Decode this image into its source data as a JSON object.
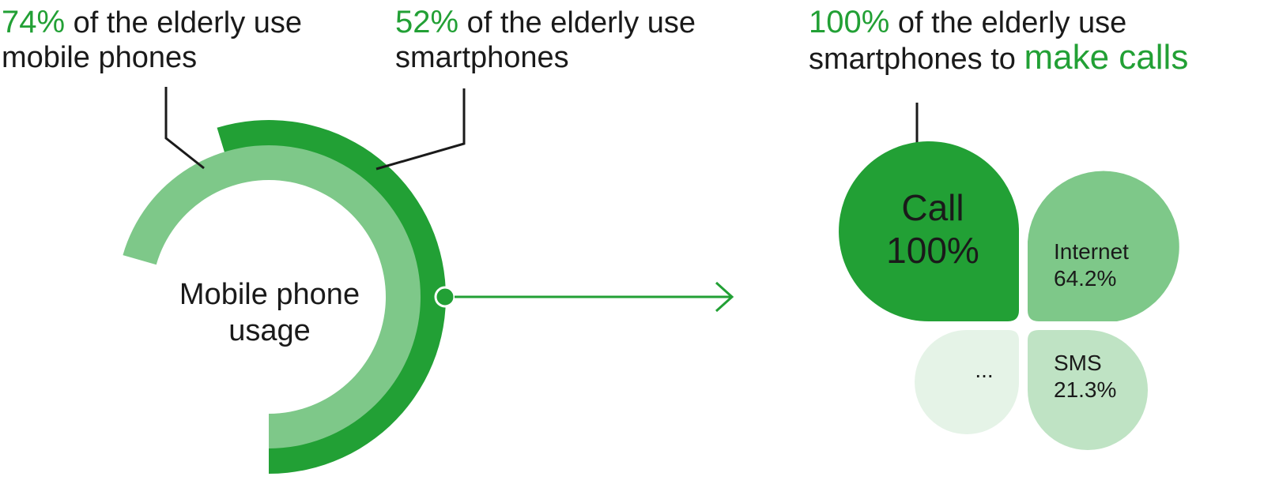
{
  "colors": {
    "dark_green": "#22a035",
    "mid_green": "#7ec889",
    "light_green": "#bfe3c4",
    "pale_green": "#e5f3e7",
    "line": "#1a1a1a"
  },
  "stat_mobile": {
    "percent": "74%",
    "text_line1": " of the elderly use",
    "text_line2": "mobile phones",
    "value": 74
  },
  "stat_smart": {
    "percent": "52%",
    "text_line1": " of the elderly use",
    "text_line2": "smartphones",
    "value": 52
  },
  "stat_calls": {
    "percent": "100%",
    "text_line1": " of  the elderly use",
    "text_line2a": "smartphones to ",
    "text_line2b": "make calls"
  },
  "center_label": {
    "line1": "Mobile phone",
    "line2": "usage"
  },
  "petals": {
    "call": {
      "name": "Call",
      "value": "100%"
    },
    "internet": {
      "name": "Internet",
      "value": "64.2%"
    },
    "sms": {
      "name": "SMS",
      "value": "21.3%"
    },
    "other": {
      "name": "..."
    }
  }
}
